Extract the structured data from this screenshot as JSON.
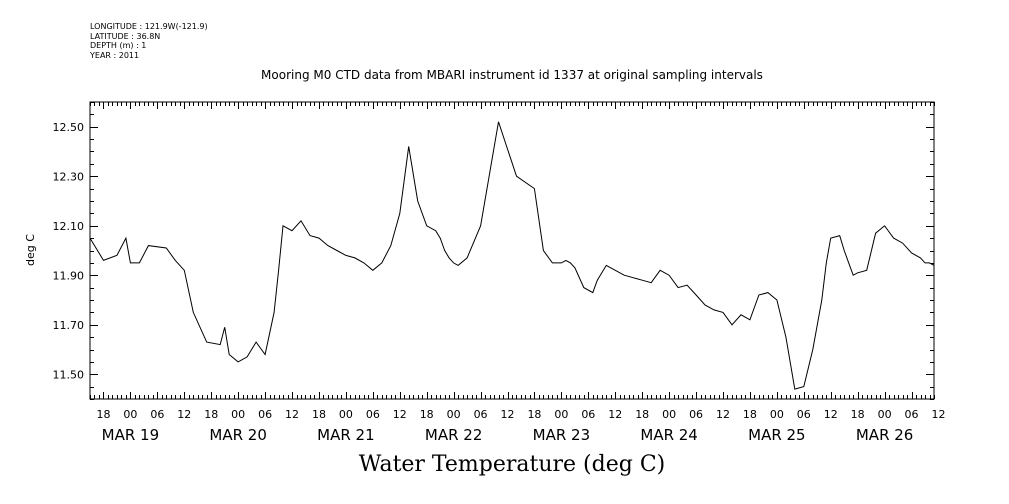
{
  "meta": {
    "longitude": "LONGITUDE : 121.9W(-121.9)",
    "latitude": "LATITUDE : 36.8N",
    "depth": "DEPTH (m) : 1",
    "year": "YEAR : 2011"
  },
  "chart_data": {
    "type": "line",
    "title": "Mooring M0 CTD data from MBARI instrument id 1337 at original sampling intervals",
    "xlabel": "Water Temperature (deg C)",
    "ylabel": "deg C",
    "ylim": [
      11.4,
      12.6
    ],
    "y_ticks": [
      "12.50",
      "12.30",
      "12.10",
      "11.90",
      "11.70",
      "11.50"
    ],
    "x_range": [
      "2011-03-18T15:00",
      "2011-03-26T11:00"
    ],
    "x_hour_ticks": [
      "18",
      "00",
      "06",
      "12",
      "18",
      "00",
      "06",
      "12",
      "18",
      "00",
      "06",
      "12",
      "18",
      "00",
      "06",
      "12",
      "18",
      "00",
      "06",
      "12",
      "18",
      "00",
      "06",
      "12",
      "18",
      "00",
      "06",
      "12",
      "18",
      "00",
      "06",
      "12"
    ],
    "x_day_labels": [
      "MAR 19",
      "MAR 20",
      "MAR 21",
      "MAR 22",
      "MAR 23",
      "MAR 24",
      "MAR 25",
      "MAR 26"
    ],
    "grid": false,
    "series": [
      {
        "x": [
          "2011-03-18T15:00",
          "2011-03-18T18:00",
          "2011-03-18T21:00",
          "2011-03-18T23:00",
          "2011-03-19T00:00",
          "2011-03-19T02:00",
          "2011-03-19T04:00",
          "2011-03-19T08:00",
          "2011-03-19T10:00",
          "2011-03-19T12:00",
          "2011-03-19T14:00",
          "2011-03-19T17:00",
          "2011-03-19T20:00",
          "2011-03-19T21:00",
          "2011-03-19T22:00",
          "2011-03-20T00:00",
          "2011-03-20T02:00",
          "2011-03-20T04:00",
          "2011-03-20T06:00",
          "2011-03-20T08:00",
          "2011-03-20T09:00",
          "2011-03-20T10:00",
          "2011-03-20T12:00",
          "2011-03-20T14:00",
          "2011-03-20T16:00",
          "2011-03-20T18:00",
          "2011-03-20T20:00",
          "2011-03-20T22:00",
          "2011-03-21T00:00",
          "2011-03-21T02:00",
          "2011-03-21T04:00",
          "2011-03-21T06:00",
          "2011-03-21T08:00",
          "2011-03-21T10:00",
          "2011-03-21T12:00",
          "2011-03-21T14:00",
          "2011-03-21T16:00",
          "2011-03-21T18:00",
          "2011-03-21T20:00",
          "2011-03-21T21:00",
          "2011-03-21T22:00",
          "2011-03-21T23:00",
          "2011-03-22T00:00",
          "2011-03-22T01:00",
          "2011-03-22T03:00",
          "2011-03-22T06:00",
          "2011-03-22T10:00",
          "2011-03-22T14:00",
          "2011-03-22T18:00",
          "2011-03-22T20:00",
          "2011-03-22T22:00",
          "2011-03-22T23:00",
          "2011-03-23T00:00",
          "2011-03-23T01:00",
          "2011-03-23T02:00",
          "2011-03-23T03:00",
          "2011-03-23T05:00",
          "2011-03-23T07:00",
          "2011-03-23T08:00",
          "2011-03-23T10:00",
          "2011-03-23T14:00",
          "2011-03-23T18:00",
          "2011-03-23T20:00",
          "2011-03-23T22:00",
          "2011-03-24T00:00",
          "2011-03-24T02:00",
          "2011-03-24T04:00",
          "2011-03-24T06:00",
          "2011-03-24T08:00",
          "2011-03-24T10:00",
          "2011-03-24T12:00",
          "2011-03-24T14:00",
          "2011-03-24T16:00",
          "2011-03-24T18:00",
          "2011-03-24T20:00",
          "2011-03-24T22:00",
          "2011-03-25T00:00",
          "2011-03-25T02:00",
          "2011-03-25T04:00",
          "2011-03-25T06:00",
          "2011-03-25T08:00",
          "2011-03-25T10:00",
          "2011-03-25T11:00",
          "2011-03-25T12:00",
          "2011-03-25T14:00",
          "2011-03-25T15:00",
          "2011-03-25T16:00",
          "2011-03-25T17:00",
          "2011-03-25T18:00",
          "2011-03-25T20:00",
          "2011-03-25T22:00",
          "2011-03-26T00:00",
          "2011-03-26T02:00",
          "2011-03-26T04:00",
          "2011-03-26T06:00",
          "2011-03-26T08:00",
          "2011-03-26T09:00",
          "2011-03-26T10:00",
          "2011-03-26T11:00"
        ],
        "y": [
          12.05,
          11.96,
          11.98,
          12.05,
          11.95,
          11.95,
          12.02,
          12.01,
          11.96,
          11.92,
          11.75,
          11.63,
          11.62,
          11.69,
          11.58,
          11.55,
          11.57,
          11.63,
          11.58,
          11.75,
          11.92,
          12.1,
          12.08,
          12.12,
          12.06,
          12.05,
          12.02,
          12.0,
          11.98,
          11.97,
          11.95,
          11.92,
          11.95,
          12.02,
          12.15,
          12.42,
          12.2,
          12.1,
          12.08,
          12.05,
          12.0,
          11.97,
          11.95,
          11.94,
          11.97,
          12.1,
          12.52,
          12.3,
          12.25,
          12.0,
          11.95,
          11.95,
          11.95,
          11.96,
          11.95,
          11.93,
          11.85,
          11.83,
          11.88,
          11.94,
          11.9,
          11.88,
          11.87,
          11.92,
          11.9,
          11.85,
          11.86,
          11.82,
          11.78,
          11.76,
          11.75,
          11.7,
          11.74,
          11.72,
          11.82,
          11.83,
          11.8,
          11.65,
          11.44,
          11.45,
          11.6,
          11.8,
          11.95,
          12.05,
          12.06,
          12.0,
          11.95,
          11.9,
          11.91,
          11.92,
          12.07,
          12.1,
          12.05,
          12.03,
          11.99,
          11.97,
          11.95,
          11.95,
          11.94
        ]
      }
    ]
  }
}
